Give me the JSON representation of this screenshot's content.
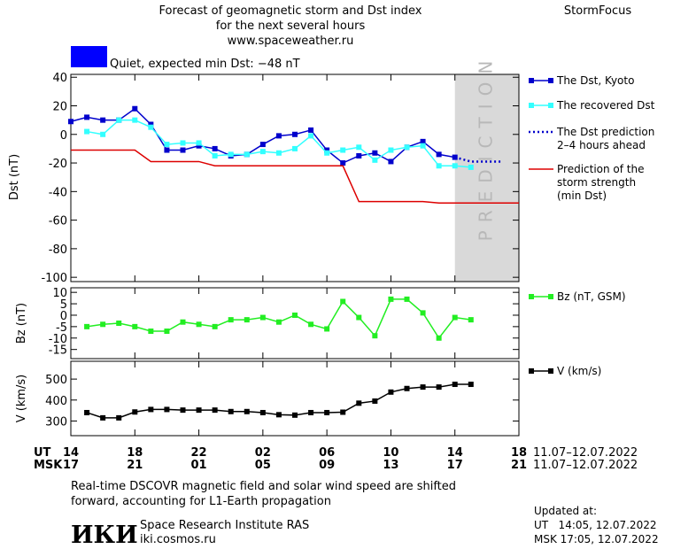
{
  "header": {
    "title_lines": [
      "Forecast of geomagnetic storm and Dst index",
      "for the next several hours",
      "www.spaceweather.ru"
    ],
    "brand": "StormFocus",
    "status": {
      "text": "Quiet, expected min Dst: −48 nT",
      "color": "#0000ff"
    }
  },
  "chart_data": [
    {
      "type": "line",
      "ylabel": "Dst (nT)",
      "xlim": [
        0,
        28
      ],
      "ylim": [
        -103,
        42
      ],
      "yticks": [
        40,
        20,
        0,
        -20,
        -40,
        -60,
        -80,
        -100
      ],
      "legend": "right",
      "prediction_zone": {
        "x": [
          24,
          28
        ],
        "label": "PREDICTION",
        "color": "#d9d9d9"
      },
      "series": [
        {
          "name": "The Dst, Kyoto",
          "color": "#0000cc",
          "marker": "square",
          "x": [
            0,
            1,
            2,
            3,
            4,
            5,
            6,
            7,
            8,
            9,
            10,
            11,
            12,
            13,
            14,
            15,
            16,
            17,
            18,
            19,
            20,
            21,
            22,
            23,
            24
          ],
          "values": [
            9,
            12,
            10,
            10,
            18,
            7,
            -11,
            -11,
            -8,
            -10,
            -15,
            -14,
            -7,
            -1,
            0,
            3,
            -11,
            -20,
            -15,
            -13,
            -19,
            -9,
            -5,
            -14,
            -16
          ]
        },
        {
          "name": "The recovered Dst",
          "color": "#33ffff",
          "marker": "square",
          "x": [
            1,
            2,
            3,
            4,
            5,
            6,
            7,
            8,
            9,
            10,
            11,
            12,
            13,
            14,
            15,
            16,
            17,
            18,
            19,
            20,
            21,
            22,
            23,
            24,
            25
          ],
          "values": [
            2,
            0,
            10,
            10,
            5,
            -7,
            -6,
            -6,
            -15,
            -14,
            -14,
            -12,
            -13,
            -10,
            -1,
            -13,
            -11,
            -9,
            -18,
            -11,
            -9,
            -8,
            -22,
            -22,
            -23
          ]
        },
        {
          "name": "The Dst prediction\n2–4 hours ahead",
          "color": "#0000cc",
          "dash": "dotted",
          "x": [
            24,
            25,
            26,
            27
          ],
          "values": [
            -16,
            -19,
            -19,
            -19
          ]
        },
        {
          "name": "Prediction of the\nstorm strength\n(min Dst)",
          "color": "#dd0000",
          "x": [
            0,
            4,
            5,
            8,
            9,
            17,
            18,
            22,
            23,
            28
          ],
          "values": [
            -11,
            -11,
            -19,
            -19,
            -22,
            -22,
            -47,
            -47,
            -48,
            -48
          ]
        }
      ]
    },
    {
      "type": "line",
      "ylabel": "Bz (nT)",
      "xlim": [
        0,
        28
      ],
      "ylim": [
        -19,
        12
      ],
      "yticks": [
        10,
        5,
        0,
        -5,
        -10,
        -15
      ],
      "legend": "right",
      "series": [
        {
          "name": "Bz (nT, GSM)",
          "color": "#22ee22",
          "marker": "square",
          "x": [
            1,
            2,
            3,
            4,
            5,
            6,
            7,
            8,
            9,
            10,
            11,
            12,
            13,
            14,
            15,
            16,
            17,
            18,
            19,
            20,
            21,
            22,
            23,
            24,
            25
          ],
          "values": [
            -5,
            -4,
            -3.5,
            -5,
            -7,
            -7,
            -3,
            -4,
            -5,
            -2,
            -2,
            -1,
            -3,
            0,
            -4,
            -6,
            6,
            -1,
            -9,
            7,
            7,
            1,
            -10,
            -1,
            -2
          ]
        }
      ]
    },
    {
      "type": "line",
      "ylabel": "V (km/s)",
      "xlim": [
        0,
        28
      ],
      "ylim": [
        230,
        585
      ],
      "yticks": [
        500,
        400,
        300
      ],
      "legend": "right",
      "xticks": [
        {
          "value": 0,
          "label": "14"
        },
        {
          "value": 4,
          "label": "18"
        },
        {
          "value": 8,
          "label": "22"
        },
        {
          "value": 12,
          "label": "02"
        },
        {
          "value": 16,
          "label": "06"
        },
        {
          "value": 20,
          "label": "10"
        },
        {
          "value": 24,
          "label": "14"
        },
        {
          "value": 28,
          "label": "18"
        }
      ],
      "x_row_label": "UT",
      "x2_row_label": "MSK",
      "x2_tick_labels": [
        "17",
        "21",
        "01",
        "05",
        "09",
        "13",
        "17",
        "21"
      ],
      "date_range": "11.07–12.07.2022",
      "series": [
        {
          "name": "V (km/s)",
          "color": "#000000",
          "marker": "square",
          "x": [
            1,
            2,
            3,
            4,
            5,
            6,
            7,
            8,
            9,
            10,
            11,
            12,
            13,
            14,
            15,
            16,
            17,
            18,
            19,
            20,
            21,
            22,
            23,
            24,
            25
          ],
          "values": [
            340,
            315,
            315,
            343,
            355,
            355,
            352,
            352,
            352,
            345,
            345,
            340,
            330,
            328,
            340,
            340,
            342,
            385,
            395,
            438,
            455,
            462,
            462,
            475,
            475
          ]
        }
      ]
    }
  ],
  "footer": {
    "note_lines": [
      "Real-time DSCOVR magnetic field and solar wind speed are shifted",
      "forward, accounting for L1-Earth propagation"
    ],
    "logo": "ИКИ",
    "institute": "Space Research Institute RAS",
    "site": "iki.cosmos.ru",
    "updated_label": "Updated at:",
    "updated_ut": "UT   14:05, 12.07.2022",
    "updated_msk": "MSK 17:05, 12.07.2022"
  }
}
